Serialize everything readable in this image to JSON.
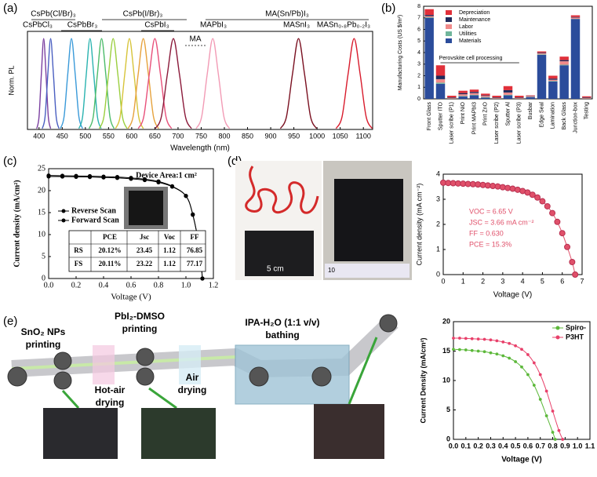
{
  "panel_labels": [
    "(a)",
    "(b)",
    "(c)",
    "(d)",
    "(e)"
  ],
  "photo_labels": [
    "5 cm",
    "10"
  ],
  "schematic_labels": [
    "SnO₂ NPs",
    "printing",
    "PbI₂-DMSO",
    "printing",
    "IPA-H₂O (1:1 v/v)",
    "bathing",
    "Hot-air",
    "drying",
    "Air",
    "drying"
  ],
  "chart_data": [
    {
      "type": "line",
      "xlabel": "Wavelength (nm)",
      "ylabel": "Norm. PL",
      "xlim": [
        375,
        1120
      ],
      "ylim": [
        0,
        1.08
      ],
      "xticks": [
        400,
        450,
        500,
        550,
        600,
        650,
        700,
        750,
        800,
        850,
        900,
        950,
        1000,
        1050,
        1100
      ],
      "annotations": [
        "CsPb(Cl/Br)₃",
        "CsPbCl₃",
        "CsPbBr₃",
        "CsPb(I/Br)₃",
        "CsPbI₃",
        "MA",
        "MAPbI₃",
        "MA(Sn/Pb)I₃",
        "MASnI₃",
        "MASn₀.₈Pb₀.₂I₃"
      ],
      "series": [
        {
          "color": "#7b3fa0",
          "x": [
            395,
            400,
            405,
            410,
            415,
            420,
            425
          ],
          "values": [
            0.01,
            0.14,
            0.61,
            1,
            0.61,
            0.14,
            0.01
          ]
        },
        {
          "color": "#4a5fc1",
          "x": [
            407,
            413,
            419,
            425,
            431,
            437,
            443
          ],
          "values": [
            0.01,
            0.14,
            0.61,
            1,
            0.61,
            0.14,
            0.01
          ]
        },
        {
          "color": "#3a9ad9",
          "x": [
            446,
            454,
            462,
            470,
            478,
            486,
            494
          ],
          "values": [
            0.01,
            0.14,
            0.61,
            1,
            0.61,
            0.14,
            0.01
          ]
        },
        {
          "color": "#2ab3b0",
          "x": [
            486,
            494,
            502,
            510,
            518,
            526,
            534
          ],
          "values": [
            0.01,
            0.14,
            0.61,
            1,
            0.61,
            0.14,
            0.01
          ]
        },
        {
          "color": "#4cbb6a",
          "x": [
            508,
            517,
            526,
            535,
            544,
            553,
            562
          ],
          "values": [
            0.01,
            0.14,
            0.61,
            1,
            0.61,
            0.14,
            0.01
          ]
        },
        {
          "color": "#9bcf3f",
          "x": [
            530,
            540,
            550,
            560,
            570,
            580,
            590
          ],
          "values": [
            0.01,
            0.14,
            0.61,
            1,
            0.61,
            0.14,
            0.01
          ]
        },
        {
          "color": "#d7c43a",
          "x": [
            565,
            575,
            585,
            595,
            605,
            615,
            625
          ],
          "values": [
            0.01,
            0.14,
            0.61,
            1,
            0.61,
            0.14,
            0.01
          ]
        },
        {
          "color": "#e6a23c",
          "x": [
            592,
            603,
            614,
            625,
            636,
            647,
            658
          ],
          "values": [
            0.01,
            0.14,
            0.61,
            1,
            0.61,
            0.14,
            0.01
          ]
        },
        {
          "color": "#e8507a",
          "x": [
            614,
            626,
            638,
            650,
            662,
            674,
            686
          ],
          "values": [
            0.01,
            0.14,
            0.61,
            1,
            0.61,
            0.14,
            0.01
          ]
        },
        {
          "color": "#8b1a3a",
          "x": [
            651,
            664,
            677,
            690,
            703,
            716,
            729
          ],
          "values": [
            0.01,
            0.14,
            0.61,
            1,
            0.61,
            0.14,
            0.01
          ]
        },
        {
          "color": "#f29bb5",
          "x": [
            739,
            751,
            763,
            775,
            787,
            799,
            811
          ],
          "values": [
            0.01,
            0.14,
            0.61,
            1,
            0.61,
            0.14,
            0.01
          ]
        },
        {
          "color": "#7a1020",
          "x": [
            921,
            934,
            947,
            960,
            973,
            986,
            999
          ],
          "values": [
            0.01,
            0.14,
            0.61,
            1,
            0.61,
            0.14,
            0.01
          ]
        },
        {
          "color": "#d81b2c",
          "x": [
            1041,
            1054,
            1067,
            1080,
            1093,
            1106,
            1119
          ],
          "values": [
            0.01,
            0.14,
            0.61,
            1,
            0.61,
            0.14,
            0.01
          ]
        }
      ]
    },
    {
      "type": "bar",
      "stacked": true,
      "ylabel": "Manufacturing Costs (US $/m²)",
      "ylim": [
        0,
        8
      ],
      "yticks": [
        0,
        1,
        2,
        3,
        4,
        5,
        6,
        7,
        8
      ],
      "legend": "upper left",
      "annotations": [
        "Perovskite cell processing"
      ],
      "categories": [
        "Front Glass",
        "Sputter ITO",
        "Laser scribe (P1)",
        "Print NiO",
        "Print MAPbI3",
        "Print ZnO",
        "Laser scribe (P2)",
        "Sputter Al",
        "Laser scribe (P3)",
        "Busbar",
        "Edge Seal",
        "Lamination",
        "Back Glass",
        "Junction-box",
        "Testing"
      ],
      "series": [
        {
          "name": "Depreciation",
          "color": "#e0303a",
          "values": [
            0.5,
            0.9,
            0.15,
            0.2,
            0.2,
            0.15,
            0.15,
            0.35,
            0.15,
            0.05,
            0.1,
            0.25,
            0.3,
            0.15,
            0.1
          ]
        },
        {
          "name": "Maintenance",
          "color": "#1f2a5c",
          "values": [
            0.1,
            0.3,
            0.05,
            0.1,
            0.1,
            0.05,
            0.05,
            0.2,
            0.05,
            0.03,
            0.05,
            0.1,
            0.1,
            0.05,
            0.05
          ]
        },
        {
          "name": "Labor",
          "color": "#f08a8a",
          "values": [
            0.1,
            0.3,
            0.05,
            0.15,
            0.15,
            0.1,
            0.05,
            0.2,
            0.05,
            0.05,
            0.1,
            0.1,
            0.3,
            0.1,
            0.05
          ]
        },
        {
          "name": "Utilities",
          "color": "#6fb59b",
          "values": [
            0.05,
            0.1,
            0.02,
            0.05,
            0.05,
            0.05,
            0.02,
            0.05,
            0.02,
            0.02,
            0.05,
            0.05,
            0.05,
            0.02,
            0.02
          ]
        },
        {
          "name": "Materials",
          "color": "#2b4c9b",
          "values": [
            7.0,
            1.3,
            0,
            0.2,
            0.3,
            0.1,
            0,
            0.3,
            0,
            0.15,
            3.8,
            1.5,
            2.9,
            6.9,
            0
          ]
        }
      ]
    },
    {
      "type": "line",
      "markers": true,
      "xlabel": "Voltage (V)",
      "ylabel": "Current density (mA/cm²)",
      "xlim": [
        0,
        1.2
      ],
      "ylim": [
        0,
        25
      ],
      "xticks": [
        {
          "value": 0,
          "label": "0.0"
        },
        0.2,
        0.4,
        0.6,
        0.8,
        {
          "value": 1,
          "label": "1.0"
        },
        1.2
      ],
      "yticks": [
        0,
        5,
        10,
        15,
        20,
        25
      ],
      "legend": "center left",
      "annotations": [
        "Device Area:1 cm²"
      ],
      "table": {
        "header": [
          "PCE",
          "Jsc",
          "Voc",
          "FF"
        ],
        "rows": [
          [
            "RS",
            "20.12%",
            "23.45",
            "1.12",
            "76.85"
          ],
          [
            "FS",
            "20.11%",
            "23.22",
            "1.12",
            "77.17"
          ]
        ]
      },
      "x": [
        0,
        0.1,
        0.2,
        0.3,
        0.4,
        0.5,
        0.6,
        0.7,
        0.8,
        0.9,
        1,
        1.05,
        1.1,
        1.12
      ],
      "series": [
        {
          "name": "Reverse Scan",
          "color": "#000000",
          "values": [
            23.45,
            23.4,
            23.35,
            23.3,
            23.2,
            23.1,
            22.9,
            22.6,
            22.1,
            21.0,
            18.8,
            14.5,
            6.5,
            0
          ]
        },
        {
          "name": "Forward Scan",
          "color": "#000000",
          "values": [
            23.22,
            23.2,
            23.15,
            23.1,
            23.0,
            22.9,
            22.7,
            22.4,
            21.9,
            20.9,
            18.8,
            14.6,
            6.5,
            0
          ]
        }
      ]
    },
    {
      "type": "line",
      "markers": true,
      "xlabel": "Voltage (V)",
      "ylabel": "Current density (mA cm⁻²)",
      "xlim": [
        0,
        7
      ],
      "ylim": [
        0,
        4
      ],
      "xticks": [
        0,
        1,
        2,
        3,
        4,
        5,
        6,
        7
      ],
      "yticks": [
        0,
        1,
        2,
        3,
        4
      ],
      "annotations": [
        "VOC = 6.65 V",
        "JSC = 3.66 mA cm⁻²",
        "FF = 0.630",
        "PCE = 15.3%"
      ],
      "x": [
        0,
        0.25,
        0.5,
        0.75,
        1,
        1.25,
        1.5,
        1.75,
        2,
        2.25,
        2.5,
        2.75,
        3,
        3.25,
        3.5,
        3.75,
        4,
        4.25,
        4.5,
        4.75,
        5,
        5.25,
        5.5,
        5.75,
        6,
        6.25,
        6.5,
        6.65
      ],
      "series": [
        {
          "color": "#e0506a",
          "values": [
            3.66,
            3.65,
            3.64,
            3.63,
            3.62,
            3.61,
            3.6,
            3.59,
            3.57,
            3.55,
            3.53,
            3.51,
            3.48,
            3.45,
            3.42,
            3.38,
            3.33,
            3.27,
            3.18,
            3.07,
            2.92,
            2.72,
            2.45,
            2.1,
            1.65,
            1.1,
            0.5,
            0
          ]
        }
      ]
    },
    {
      "type": "line",
      "markers": true,
      "xlabel": "Voltage (V)",
      "ylabel": "Current Density (mA/cm²)",
      "xlim": [
        0,
        1.1
      ],
      "ylim": [
        0,
        20
      ],
      "xticks": [
        {
          "value": 0,
          "label": "0.0"
        },
        0.1,
        0.2,
        0.3,
        0.4,
        0.5,
        0.6,
        0.7,
        0.8,
        0.9,
        {
          "value": 1,
          "label": "1.0"
        },
        1.1
      ],
      "yticks": [
        0,
        5,
        10,
        15,
        20
      ],
      "legend": "upper right",
      "series": [
        {
          "name": "Spiro-",
          "color": "#5cb83a",
          "x": [
            0,
            0.05,
            0.1,
            0.15,
            0.2,
            0.25,
            0.3,
            0.35,
            0.4,
            0.45,
            0.5,
            0.55,
            0.6,
            0.65,
            0.7,
            0.75,
            0.8,
            0.82
          ],
          "values": [
            15.3,
            15.25,
            15.2,
            15.1,
            15.0,
            14.9,
            14.7,
            14.5,
            14.2,
            13.8,
            13.2,
            12.3,
            11.0,
            9.2,
            6.8,
            4.0,
            1.2,
            0
          ]
        },
        {
          "name": "P3HT",
          "color": "#e8406a",
          "x": [
            0,
            0.05,
            0.1,
            0.15,
            0.2,
            0.25,
            0.3,
            0.35,
            0.4,
            0.45,
            0.5,
            0.55,
            0.6,
            0.65,
            0.7,
            0.75,
            0.8,
            0.85,
            0.88
          ],
          "values": [
            17.2,
            17.2,
            17.15,
            17.1,
            17.05,
            17.0,
            16.9,
            16.75,
            16.55,
            16.3,
            15.9,
            15.3,
            14.4,
            13.0,
            11.0,
            8.2,
            4.8,
            1.5,
            0
          ]
        }
      ]
    }
  ]
}
